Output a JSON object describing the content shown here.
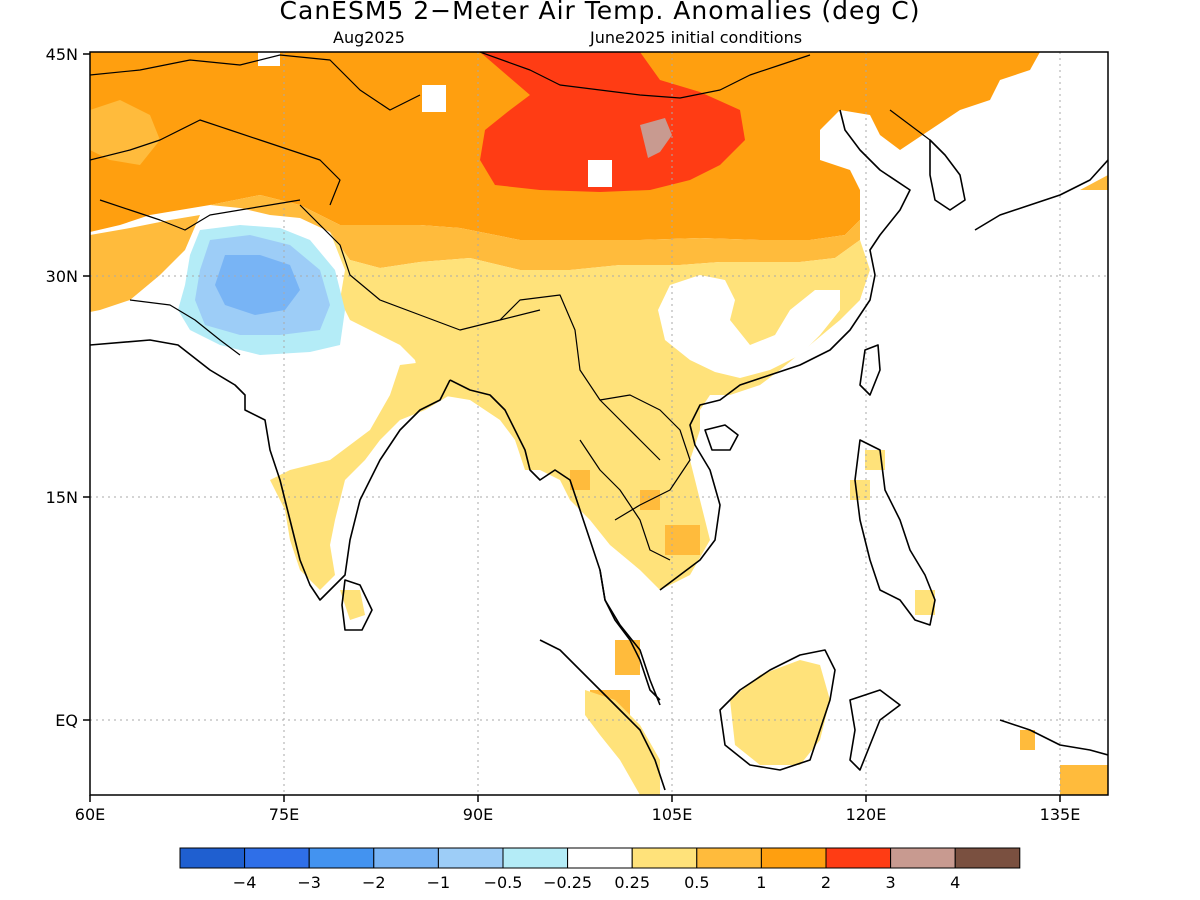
{
  "header": {
    "title": "CanESM5 2−Meter Air Temp. Anomalies (deg C)",
    "valid_month": "Aug2025",
    "init_conditions": "June2025 initial conditions"
  },
  "map": {
    "projection": "lat-lon",
    "lon_range": [
      "60E",
      "140E"
    ],
    "lat_range": [
      "5S",
      "45N"
    ],
    "lon_labels": [
      "60E",
      "75E",
      "90E",
      "105E",
      "120E",
      "135E"
    ],
    "lat_labels": [
      "45N",
      "30N",
      "15N",
      "EQ"
    ],
    "grid": "dotted gridlines every 15 degrees"
  },
  "colorbar": {
    "colors": [
      "#1f5fd0",
      "#2f6fe8",
      "#4393f0",
      "#78b4f5",
      "#9dcdf7",
      "#b4ecf7",
      "#ffffff",
      "#ffe27a",
      "#ffbb3c",
      "#ff9f0f",
      "#ff3c14",
      "#c89a90",
      "#7a5040"
    ],
    "tick_labels": [
      "−4",
      "−3",
      "−2",
      "−1",
      "−0.5",
      "−0.25",
      "0.25",
      "0.5",
      "1",
      "2",
      "3",
      "4"
    ]
  }
}
